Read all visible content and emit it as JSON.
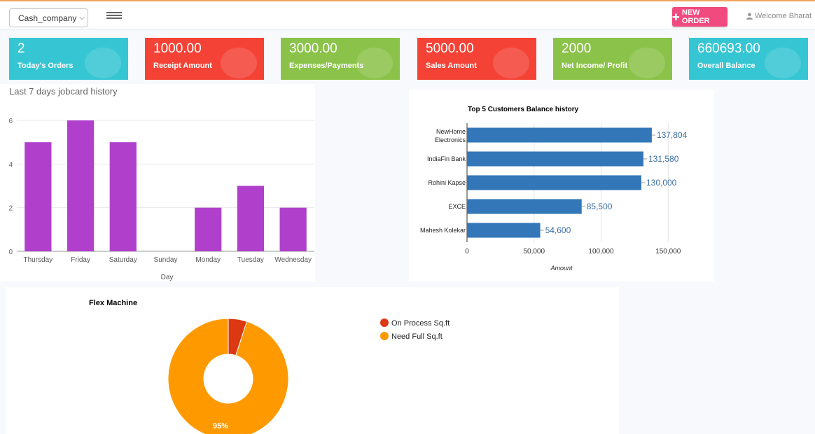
{
  "header": {
    "company_select": "Cash_company",
    "new_order_label": "NEW ORDER",
    "welcome_text": "Welcome Bharat"
  },
  "stats": [
    {
      "value": "2",
      "label": "Today's Orders",
      "color": "#36c6d3"
    },
    {
      "value": "1000.00",
      "label": "Receipt Amount",
      "color": "#f44336"
    },
    {
      "value": "3000.00",
      "label": "Expenses/Payments",
      "color": "#8bc34a"
    },
    {
      "value": "5000.00",
      "label": "Sales Amount",
      "color": "#f44336"
    },
    {
      "value": "2000",
      "label": "Net Income/ Profit",
      "color": "#8bc34a"
    },
    {
      "value": "660693.00",
      "label": "Overall Balance",
      "color": "#36c6d3"
    }
  ],
  "jobcard_panel": {
    "title": "Last 7 days jobcard history"
  },
  "chart_data": [
    {
      "type": "bar",
      "title": "",
      "categories": [
        "Thursday",
        "Friday",
        "Saturday",
        "Sunday",
        "Monday",
        "Tuesday",
        "Wednesday"
      ],
      "values": [
        5,
        6,
        5,
        0,
        2,
        3,
        2
      ],
      "xlabel": "Day",
      "ylabel": "",
      "ylim": [
        0,
        6
      ],
      "yticks": [
        0,
        2,
        4,
        6
      ],
      "color": "#b040cc",
      "grid": true
    },
    {
      "type": "bar",
      "orientation": "horizontal",
      "title": "Top 5 Customers Balance history",
      "categories": [
        "NewHome Electronics",
        "IndiaFin Bank",
        "Rohini Kapse",
        "EXCE",
        "Mahesh Kolekar"
      ],
      "values": [
        137804,
        131580,
        130000,
        85500,
        54600
      ],
      "value_labels": [
        "137,804",
        "131,580",
        "130,000",
        "85,500",
        "54,600"
      ],
      "xlabel": "Amount",
      "ylabel": "",
      "xlim": [
        0,
        165000
      ],
      "xticks": [
        0,
        50000,
        100000,
        150000
      ],
      "xtick_labels": [
        "0",
        "50,000",
        "100,000",
        "150,000"
      ],
      "color": "#3377b8",
      "grid": true
    },
    {
      "type": "pie",
      "donut": true,
      "title": "Flex Machine",
      "labels": [
        "On Process Sq.ft",
        "Need Full Sq.ft"
      ],
      "values": [
        5,
        95
      ],
      "slice_labels": [
        "",
        "95%"
      ],
      "colors": [
        "#dc3912",
        "#ff9900"
      ],
      "legend": "right"
    }
  ]
}
